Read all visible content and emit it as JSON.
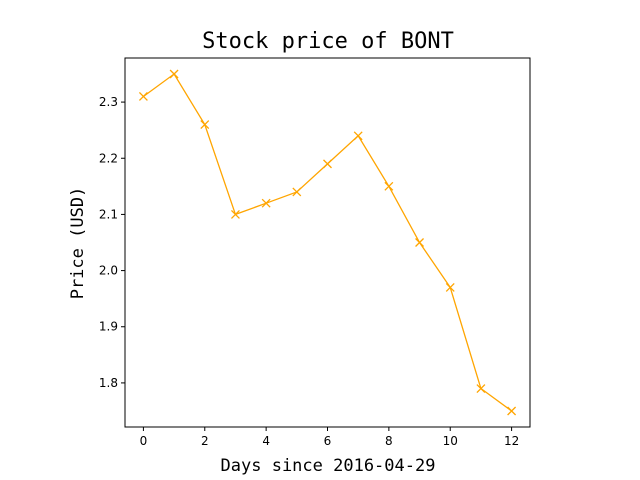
{
  "chart_data": {
    "type": "line",
    "title": "Stock price of BONT",
    "xlabel": "Days since 2016-04-29",
    "ylabel": "Price (USD)",
    "x": [
      0,
      1,
      2,
      3,
      4,
      5,
      6,
      7,
      8,
      9,
      10,
      11,
      12
    ],
    "series": [
      {
        "values": [
          2.31,
          2.35,
          2.26,
          2.1,
          2.12,
          2.14,
          2.19,
          2.24,
          2.15,
          2.05,
          1.97,
          1.79,
          1.75
        ],
        "color": "#FFA500",
        "marker": "x"
      }
    ],
    "xlim": [
      -0.6,
      12.6
    ],
    "ylim": [
      1.7215,
      2.3785
    ],
    "xticks": [
      0,
      2,
      4,
      6,
      8,
      10,
      12
    ],
    "xtick_labels": [
      "0",
      "2",
      "4",
      "6",
      "8",
      "10",
      "12"
    ],
    "yticks": [
      1.8,
      1.9,
      2.0,
      2.1,
      2.2,
      2.3
    ],
    "ytick_labels": [
      "1.8",
      "1.9",
      "2.0",
      "2.1",
      "2.2",
      "2.3"
    ],
    "grid": false,
    "legend": false
  }
}
